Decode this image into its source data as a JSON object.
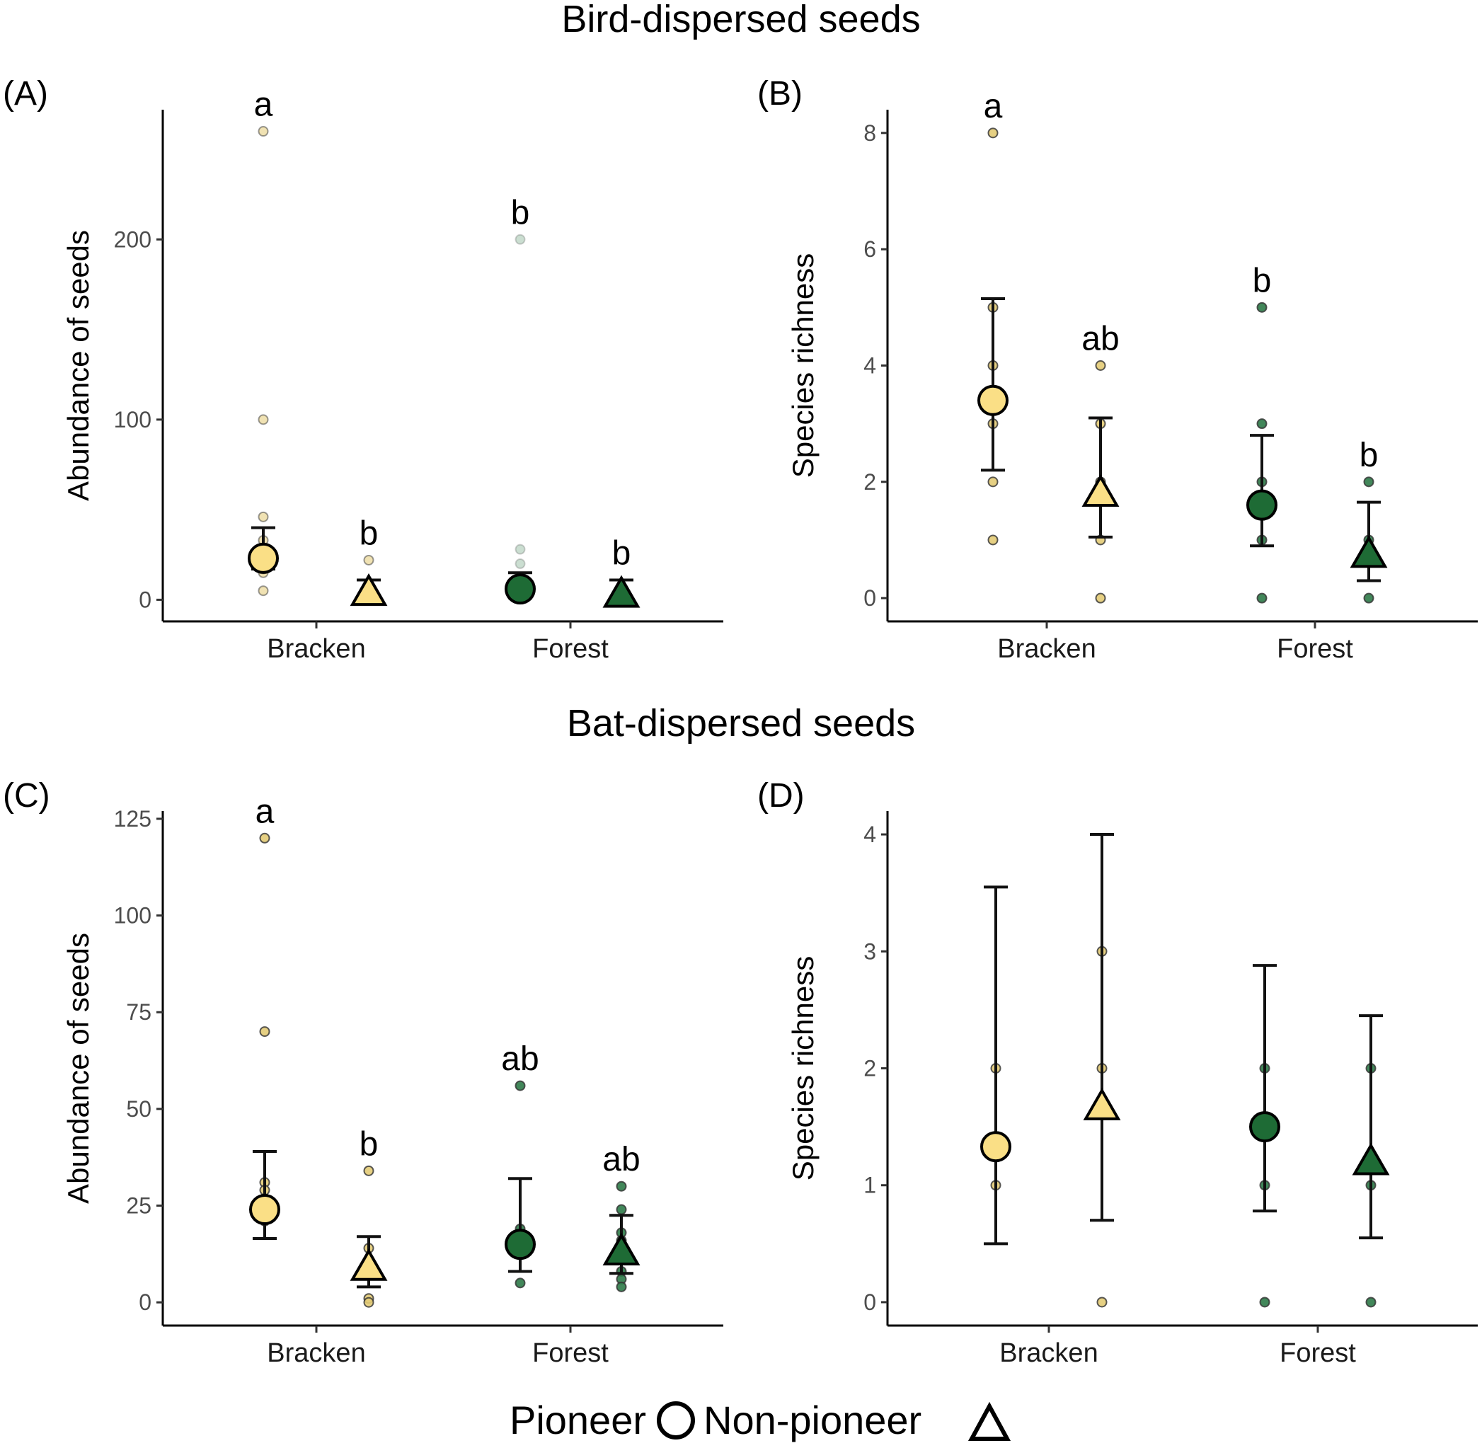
{
  "colors": {
    "pioneer_fill": "#FADF86",
    "forest_fill": "#1E6B35",
    "axis": "#000000",
    "raw_bracken": "#E3CB75",
    "raw_forest": "#2E7A48"
  },
  "sections": [
    {
      "title": "Bird-dispersed seeds"
    },
    {
      "title": "Bat-dispersed seeds"
    }
  ],
  "legend": {
    "pioneer_label": "Pioneer",
    "pioneer_icon": "circle-icon",
    "nonpioneer_label": "Non-pioneer",
    "nonpioneer_icon": "triangle-icon"
  },
  "chart_data": [
    {
      "type": "scatter",
      "panel": "(A)",
      "ylabel": "Abundance of seeds",
      "xlabel": "",
      "categories": [
        "Bracken",
        "Forest"
      ],
      "ylim": [
        -12,
        272
      ],
      "yticks": [
        0,
        100,
        200
      ],
      "tick_labels": [
        "0",
        "100",
        "200"
      ],
      "series": [
        {
          "name": "Pioneer",
          "habitat": "Bracken",
          "mean": 23,
          "lower": 17,
          "upper": 40,
          "letter": "a",
          "raw": [
            260,
            100,
            46,
            33,
            27,
            22,
            20,
            17,
            15,
            5
          ],
          "raw_alpha": 0.55
        },
        {
          "name": "Non-pioneer",
          "habitat": "Bracken",
          "mean": 4,
          "lower": 0,
          "upper": 11,
          "letter": "b",
          "raw": [
            22,
            8,
            3,
            1,
            0
          ],
          "raw_alpha": 0.55
        },
        {
          "name": "Pioneer",
          "habitat": "Forest",
          "mean": 6,
          "lower": 1,
          "upper": 15,
          "letter": "b",
          "raw": [
            200,
            28,
            20,
            8,
            5,
            3
          ],
          "raw_alpha": 0.25
        },
        {
          "name": "Non-pioneer",
          "habitat": "Forest",
          "mean": 3,
          "lower": 0,
          "upper": 11,
          "letter": "b",
          "raw": [
            5,
            2,
            1,
            0
          ],
          "raw_alpha": 0.55
        }
      ]
    },
    {
      "type": "scatter",
      "panel": "(B)",
      "ylabel": "Species richness",
      "xlabel": "",
      "categories": [
        "Bracken",
        "Forest"
      ],
      "ylim": [
        -0.4,
        8.4
      ],
      "yticks": [
        0,
        2,
        4,
        6,
        8
      ],
      "tick_labels": [
        "0",
        "2",
        "4",
        "6",
        "8"
      ],
      "series": [
        {
          "name": "Pioneer",
          "habitat": "Bracken",
          "mean": 3.4,
          "lower": 2.2,
          "upper": 5.15,
          "letter": "a",
          "raw": [
            8,
            5,
            4,
            3,
            2,
            1
          ],
          "raw_alpha": 0.9
        },
        {
          "name": "Non-pioneer",
          "habitat": "Bracken",
          "mean": 1.8,
          "lower": 1.05,
          "upper": 3.1,
          "letter": "ab",
          "raw": [
            4,
            3,
            2,
            1,
            0
          ],
          "raw_alpha": 0.9
        },
        {
          "name": "Pioneer",
          "habitat": "Forest",
          "mean": 1.6,
          "lower": 0.9,
          "upper": 2.8,
          "letter": "b",
          "raw": [
            5,
            3,
            2,
            1,
            0
          ],
          "raw_alpha": 0.9
        },
        {
          "name": "Non-pioneer",
          "habitat": "Forest",
          "mean": 0.75,
          "lower": 0.3,
          "upper": 1.65,
          "letter": "b",
          "raw": [
            2,
            1,
            0
          ],
          "raw_alpha": 0.9
        }
      ]
    },
    {
      "type": "scatter",
      "panel": "(C)",
      "ylabel": "Abundance of seeds",
      "xlabel": "",
      "categories": [
        "Bracken",
        "Forest"
      ],
      "ylim": [
        -6,
        127
      ],
      "yticks": [
        0,
        25,
        50,
        75,
        100,
        125
      ],
      "tick_labels": [
        "0",
        "25",
        "50",
        "75",
        "100",
        "125"
      ],
      "series": [
        {
          "name": "Pioneer",
          "habitat": "Bracken",
          "mean": 24,
          "lower": 16.5,
          "upper": 39,
          "letter": "a",
          "raw": [
            120,
            70,
            31,
            29,
            24,
            21
          ],
          "raw_alpha": 0.9
        },
        {
          "name": "Non-pioneer",
          "habitat": "Bracken",
          "mean": 9,
          "lower": 4,
          "upper": 17,
          "letter": "b",
          "raw": [
            34,
            14,
            8,
            1,
            0
          ],
          "raw_alpha": 0.9
        },
        {
          "name": "Pioneer",
          "habitat": "Forest",
          "mean": 15,
          "lower": 8,
          "upper": 32,
          "letter": "ab",
          "raw": [
            56,
            19,
            15,
            5
          ],
          "raw_alpha": 0.9
        },
        {
          "name": "Non-pioneer",
          "habitat": "Forest",
          "mean": 13,
          "lower": 7.5,
          "upper": 22.5,
          "letter": "ab",
          "raw": [
            30,
            24,
            18,
            16,
            12,
            8,
            6,
            4
          ],
          "raw_alpha": 0.9
        }
      ]
    },
    {
      "type": "scatter",
      "panel": "(D)",
      "ylabel": "Species richness",
      "xlabel": "",
      "categories": [
        "Bracken",
        "Forest"
      ],
      "ylim": [
        -0.2,
        4.2
      ],
      "yticks": [
        0,
        1,
        2,
        3,
        4
      ],
      "tick_labels": [
        "0",
        "1",
        "2",
        "3",
        "4"
      ],
      "series": [
        {
          "name": "Pioneer",
          "habitat": "Bracken",
          "mean": 1.33,
          "lower": 0.5,
          "upper": 3.55,
          "letter": "",
          "raw": [
            2,
            1
          ],
          "raw_alpha": 0.9
        },
        {
          "name": "Non-pioneer",
          "habitat": "Bracken",
          "mean": 1.67,
          "lower": 0.7,
          "upper": 4.0,
          "letter": "",
          "raw": [
            3,
            2,
            0
          ],
          "raw_alpha": 0.9
        },
        {
          "name": "Pioneer",
          "habitat": "Forest",
          "mean": 1.5,
          "lower": 0.78,
          "upper": 2.88,
          "letter": "",
          "raw": [
            2,
            1,
            0
          ],
          "raw_alpha": 0.9
        },
        {
          "name": "Non-pioneer",
          "habitat": "Forest",
          "mean": 1.2,
          "lower": 0.55,
          "upper": 2.45,
          "letter": "",
          "raw": [
            2,
            1,
            0
          ],
          "raw_alpha": 0.9
        }
      ]
    }
  ]
}
